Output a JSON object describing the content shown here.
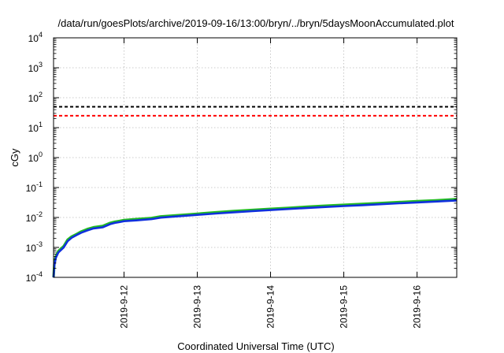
{
  "chart_data": {
    "type": "line",
    "title": "/data/run/goesPlots/archive/2019-09-16/13:00/bryn/../bryn/5daysMoonAccumulated.plot",
    "xlabel": "Coordinated Universal Time (UTC)",
    "ylabel": "cGy",
    "y_scale": "log",
    "ylim": [
      0.0001,
      10000
    ],
    "xlim": [
      "2019-09-11 00:55",
      "2019-09-16 13:00"
    ],
    "x_ticks": [
      "2019-9-12",
      "2019-9-13",
      "2019-9-14",
      "2019-9-15",
      "2019-9-16"
    ],
    "y_ticks": [
      {
        "base": "10",
        "exp": "-4"
      },
      {
        "base": "10",
        "exp": "-3"
      },
      {
        "base": "10",
        "exp": "-2"
      },
      {
        "base": "10",
        "exp": "-1"
      },
      {
        "base": "10",
        "exp": "0"
      },
      {
        "base": "10",
        "exp": "1"
      },
      {
        "base": "10",
        "exp": "2"
      },
      {
        "base": "10",
        "exp": "3"
      },
      {
        "base": "10",
        "exp": "4"
      }
    ],
    "grid": true,
    "reference_lines": [
      {
        "value": 50,
        "color": "#000000",
        "style": "dashed"
      },
      {
        "value": 25,
        "color": "#ff0000",
        "style": "dashed"
      }
    ],
    "series": [
      {
        "color": "#22bb22",
        "x": [
          "2019-09-11 00:55",
          "2019-09-11 01:10",
          "2019-09-11 01:40",
          "2019-09-11 02:30",
          "2019-09-11 04:15",
          "2019-09-11 05:30",
          "2019-09-11 06:50",
          "2019-09-11 08:30",
          "2019-09-11 10:00",
          "2019-09-11 12:00",
          "2019-09-11 14:00",
          "2019-09-11 17:00",
          "2019-09-11 19:30",
          "2019-09-11 21:00",
          "2019-09-11 22:30",
          "2019-09-12 00:00",
          "2019-09-12 04:00",
          "2019-09-12 09:00",
          "2019-09-12 12:00",
          "2019-09-12 17:00",
          "2019-09-13 00:00",
          "2019-09-13 06:00",
          "2019-09-13 12:00",
          "2019-09-13 18:00",
          "2019-09-14 00:00",
          "2019-09-14 06:00",
          "2019-09-14 12:00",
          "2019-09-14 18:00",
          "2019-09-15 00:00",
          "2019-09-15 06:00",
          "2019-09-15 12:00",
          "2019-09-15 18:00",
          "2019-09-16 00:00",
          "2019-09-16 06:00",
          "2019-09-16 13:00"
        ],
        "values": [
          0.0001,
          0.00028,
          0.0005,
          0.00075,
          0.0011,
          0.0018,
          0.0023,
          0.0028,
          0.0034,
          0.0041,
          0.0047,
          0.0052,
          0.0066,
          0.0072,
          0.0076,
          0.0082,
          0.0088,
          0.0096,
          0.0108,
          0.0118,
          0.0133,
          0.0148,
          0.0163,
          0.0178,
          0.0193,
          0.021,
          0.0228,
          0.0246,
          0.0264,
          0.0282,
          0.0303,
          0.0325,
          0.0348,
          0.0372,
          0.041
        ]
      },
      {
        "color": "#1030dd",
        "x": [
          "2019-09-11 00:55",
          "2019-09-11 01:10",
          "2019-09-11 01:40",
          "2019-09-11 02:30",
          "2019-09-11 04:15",
          "2019-09-11 05:30",
          "2019-09-11 06:50",
          "2019-09-11 08:30",
          "2019-09-11 10:00",
          "2019-09-11 12:00",
          "2019-09-11 14:00",
          "2019-09-11 17:00",
          "2019-09-11 19:30",
          "2019-09-11 21:00",
          "2019-09-11 22:30",
          "2019-09-12 00:00",
          "2019-09-12 04:00",
          "2019-09-12 09:00",
          "2019-09-12 12:00",
          "2019-09-12 17:00",
          "2019-09-13 00:00",
          "2019-09-13 06:00",
          "2019-09-13 12:00",
          "2019-09-13 18:00",
          "2019-09-14 00:00",
          "2019-09-14 06:00",
          "2019-09-14 12:00",
          "2019-09-14 18:00",
          "2019-09-15 00:00",
          "2019-09-15 06:00",
          "2019-09-15 12:00",
          "2019-09-15 18:00",
          "2019-09-16 00:00",
          "2019-09-16 06:00",
          "2019-09-16 13:00"
        ],
        "values": [
          0.0001,
          0.00025,
          0.00045,
          0.00068,
          0.001,
          0.0016,
          0.0021,
          0.0026,
          0.0031,
          0.0037,
          0.0043,
          0.0047,
          0.006,
          0.0066,
          0.007,
          0.0075,
          0.008,
          0.0088,
          0.0099,
          0.0108,
          0.0122,
          0.0135,
          0.0149,
          0.0163,
          0.0177,
          0.0192,
          0.0208,
          0.0224,
          0.0241,
          0.0258,
          0.0277,
          0.0297,
          0.0318,
          0.034,
          0.037
        ]
      }
    ]
  }
}
